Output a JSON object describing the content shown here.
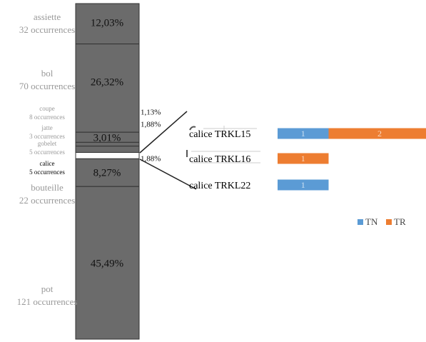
{
  "chart_data": [
    {
      "type": "stacked-column",
      "categories": [
        "assiette",
        "bol",
        "coupe",
        "jatte",
        "gobelet",
        "calice",
        "bouteille",
        "pot"
      ],
      "occurrences": [
        "32 occurrences",
        "70 occurrences",
        "8 occurrences",
        "3 occurrences",
        "5 occurrences",
        "5 occurrences",
        "22 occurrences",
        "121 occurrences"
      ],
      "values": [
        12.03,
        26.32,
        3.01,
        1.13,
        1.88,
        1.88,
        8.27,
        45.49
      ],
      "value_labels": [
        "12,03%",
        "26,32%",
        "3,01%",
        "1,13%",
        "1,88%",
        "1,88%",
        "8,27%",
        "45,49%"
      ],
      "colors": [
        "#6b6b6b",
        "#6b6b6b",
        "#6b6b6b",
        "#6b6b6b",
        "#6b6b6b",
        "#ffffff",
        "#6b6b6b",
        "#6b6b6b"
      ]
    },
    {
      "type": "stacked-bar",
      "categories": [
        "calice TRKL15",
        "calice TRKL16",
        "calice TRKL22"
      ],
      "series": [
        {
          "name": "TN",
          "color": "#5b9bd5",
          "values": [
            1,
            null,
            1
          ]
        },
        {
          "name": "TR",
          "color": "#ed7d31",
          "values": [
            2,
            1,
            null
          ]
        }
      ],
      "legend": "bottom-right"
    }
  ]
}
